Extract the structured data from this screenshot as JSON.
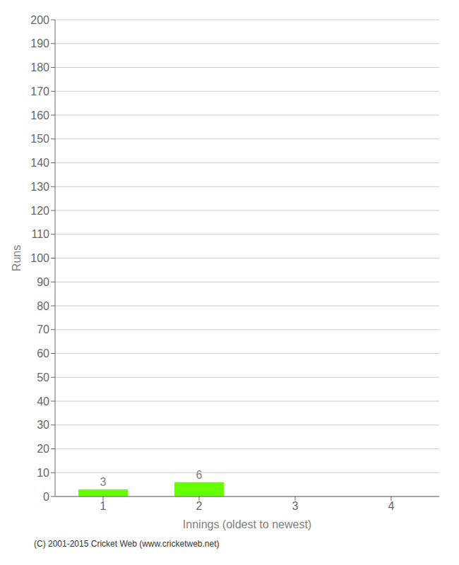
{
  "chart_data": {
    "type": "bar",
    "categories": [
      "1",
      "2",
      "3",
      "4"
    ],
    "values": [
      3,
      6,
      0,
      0
    ],
    "color": "#66ff00",
    "data_labels": true,
    "xlabel": "Innings (oldest to newest)",
    "ylabel": "Runs",
    "ylim": [
      0,
      200
    ],
    "yticks": [
      0,
      10,
      20,
      30,
      40,
      50,
      60,
      70,
      80,
      90,
      100,
      110,
      120,
      130,
      140,
      150,
      160,
      170,
      180,
      190,
      200
    ],
    "grid": true,
    "annotations": [
      "(C) 2001-2015 Cricket Web (www.cricketweb.net)"
    ]
  }
}
